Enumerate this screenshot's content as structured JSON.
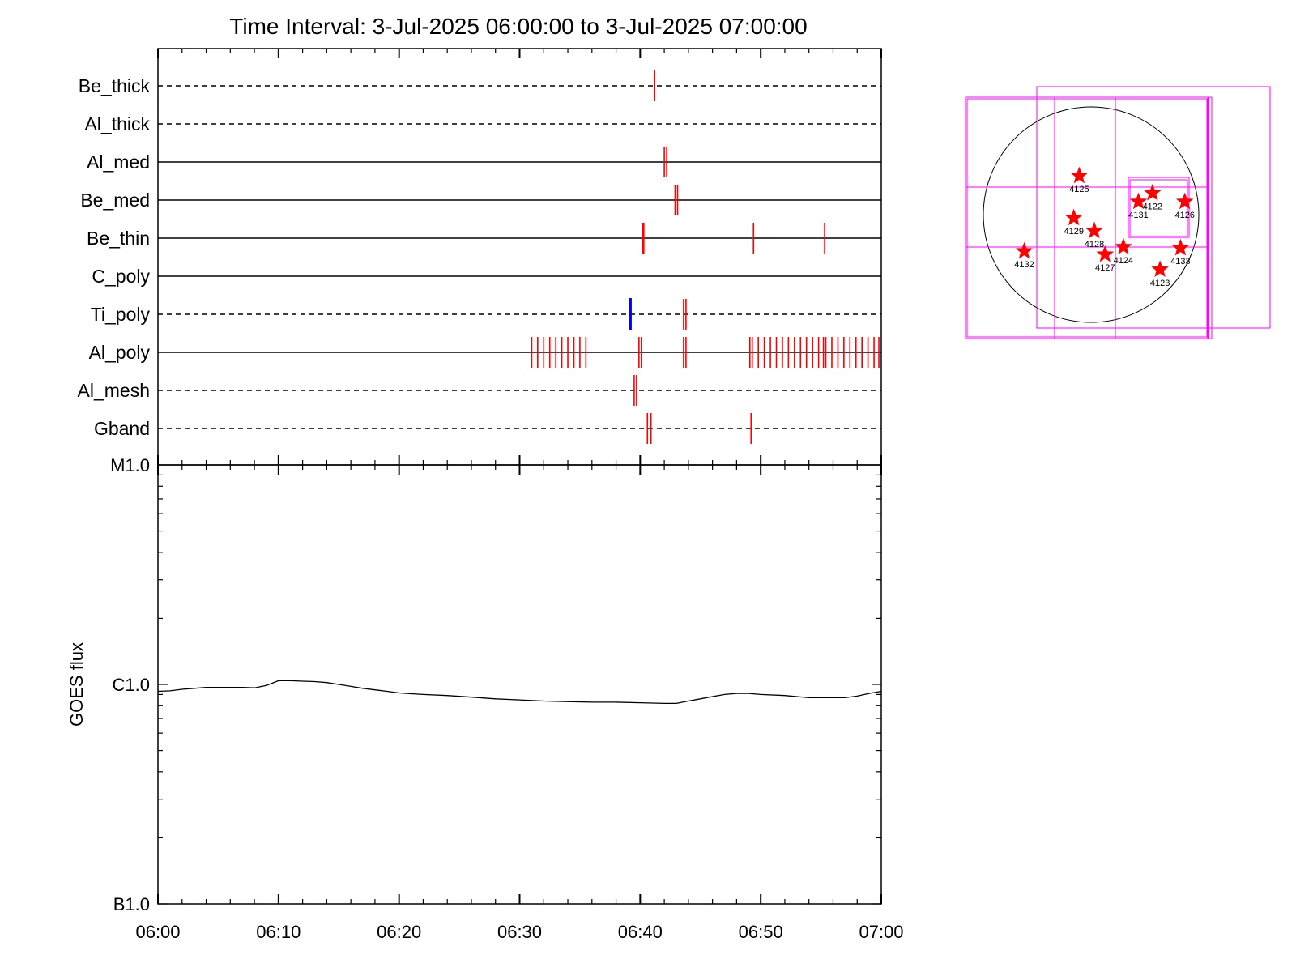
{
  "title": "Time Interval:  3-Jul-2025 06:00:00 to  3-Jul-2025 07:00:00",
  "colors": {
    "axis": "#000000",
    "event_red": "#ff0000",
    "event_blue": "#0000ff",
    "box_magenta": "#ff00ff",
    "goes_line": "#000000"
  },
  "chart_data": [
    {
      "type": "scatter",
      "description_kind": "event-timeline",
      "x_range": [
        "06:00",
        "07:00"
      ],
      "rows": [
        {
          "name": "Be_thick",
          "style": "dashed",
          "events_red": [
            41.2
          ],
          "events_blue": []
        },
        {
          "name": "Al_thick",
          "style": "dashed",
          "events_red": [],
          "events_blue": []
        },
        {
          "name": "Al_med",
          "style": "solid",
          "events_red": [
            42.0,
            42.2
          ],
          "events_blue": []
        },
        {
          "name": "Be_med",
          "style": "solid",
          "events_red": [
            42.9,
            43.1
          ],
          "events_blue": []
        },
        {
          "name": "Be_thin",
          "style": "solid",
          "events_red": [
            40.2,
            40.3,
            49.4,
            55.3
          ],
          "events_blue": []
        },
        {
          "name": "C_poly",
          "style": "solid",
          "events_red": [],
          "events_blue": []
        },
        {
          "name": "Ti_poly",
          "style": "dashed",
          "events_red": [
            43.6,
            43.8
          ],
          "events_blue": [
            39.2
          ]
        },
        {
          "name": "Al_poly",
          "style": "solid",
          "events_red": [
            31.0,
            31.5,
            32.0,
            32.5,
            33.0,
            33.5,
            34.0,
            34.5,
            35.0,
            35.5,
            39.9,
            40.1,
            43.6,
            43.8,
            49.1,
            49.3,
            49.8,
            50.3,
            50.8,
            51.3,
            51.8,
            52.3,
            52.8,
            53.3,
            53.8,
            54.3,
            54.8,
            55.2,
            55.4,
            55.9,
            56.4,
            56.9,
            57.4,
            57.9,
            58.4,
            58.9,
            59.4,
            59.8
          ],
          "events_blue": []
        },
        {
          "name": "Al_mesh",
          "style": "dashed",
          "events_red": [
            39.5,
            39.7
          ],
          "events_blue": []
        },
        {
          "name": "Gband",
          "style": "dashed",
          "events_red": [
            40.6,
            40.9,
            49.2
          ],
          "events_blue": []
        }
      ]
    },
    {
      "type": "line",
      "ylabel": "GOES flux",
      "xlabel": "",
      "x_ticks": [
        "06:00",
        "06:10",
        "06:20",
        "06:30",
        "06:40",
        "06:50",
        "07:00"
      ],
      "y_ticks": [
        "B1.0",
        "C1.0",
        "M1.0"
      ],
      "y_scale": "log",
      "ylim": [
        1e-07,
        1e-05
      ],
      "series": [
        {
          "x": [
            0,
            1,
            2,
            3,
            4,
            5,
            6,
            7,
            8,
            9,
            10,
            11,
            12,
            13,
            14,
            15,
            16,
            17,
            18,
            19,
            20,
            22,
            24,
            26,
            28,
            30,
            32,
            34,
            36,
            38,
            40,
            42,
            43,
            44,
            45,
            46,
            47,
            48,
            49,
            50,
            52,
            54,
            56,
            57,
            58,
            59,
            60
          ],
          "y": [
            9.3e-07,
            9.35e-07,
            9.5e-07,
            9.6e-07,
            9.7e-07,
            9.7e-07,
            9.7e-07,
            9.7e-07,
            9.65e-07,
            9.9e-07,
            1.04e-06,
            1.04e-06,
            1.035e-06,
            1.03e-06,
            1.02e-06,
            1e-06,
            9.8e-07,
            9.6e-07,
            9.45e-07,
            9.3e-07,
            9.15e-07,
            9e-07,
            8.9e-07,
            8.75e-07,
            8.6e-07,
            8.5e-07,
            8.4e-07,
            8.35e-07,
            8.3e-07,
            8.3e-07,
            8.25e-07,
            8.2e-07,
            8.2e-07,
            8.4e-07,
            8.6e-07,
            8.8e-07,
            9e-07,
            9.1e-07,
            9.1e-07,
            9e-07,
            8.9e-07,
            8.7e-07,
            8.7e-07,
            8.7e-07,
            8.85e-07,
            9.1e-07,
            9.3e-07
          ]
        }
      ]
    },
    {
      "type": "scatter",
      "description_kind": "solar-disk-map",
      "regions": [
        {
          "label": "4125",
          "x": -0.11,
          "y": 0.36
        },
        {
          "label": "4122",
          "x": 0.57,
          "y": 0.2
        },
        {
          "label": "4131",
          "x": 0.44,
          "y": 0.12
        },
        {
          "label": "4126",
          "x": 0.87,
          "y": 0.12
        },
        {
          "label": "4129",
          "x": -0.16,
          "y": -0.03
        },
        {
          "label": "4128",
          "x": 0.03,
          "y": -0.15
        },
        {
          "label": "4132",
          "x": -0.62,
          "y": -0.34
        },
        {
          "label": "4127",
          "x": 0.13,
          "y": -0.37
        },
        {
          "label": "4124",
          "x": 0.3,
          "y": -0.3
        },
        {
          "label": "4133",
          "x": 0.83,
          "y": -0.31
        },
        {
          "label": "4123",
          "x": 0.64,
          "y": -0.51
        }
      ]
    }
  ]
}
